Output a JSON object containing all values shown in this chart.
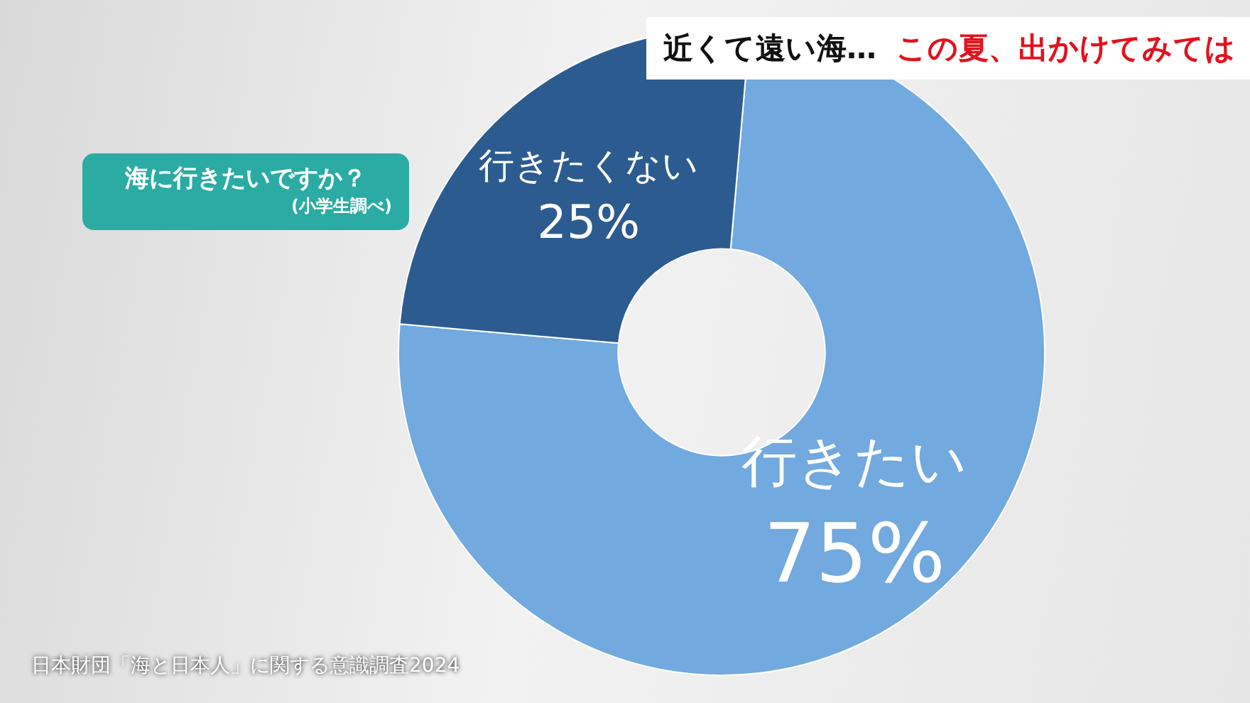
{
  "chart_data": {
    "type": "donut",
    "title": "海に行きたいですか？",
    "subtitle": "(小学生調べ)",
    "categories": [
      "行きたい",
      "行きたくない"
    ],
    "values": [
      75,
      25
    ],
    "colors": [
      "#72a9de",
      "#2c5b8f"
    ],
    "value_labels": [
      "75%",
      "25%"
    ],
    "legend": false,
    "annotations": [
      "近くて遠い海…",
      "この夏、出かけてみては",
      "日本財団「海と日本人」に関する意識調査2024"
    ]
  }
}
